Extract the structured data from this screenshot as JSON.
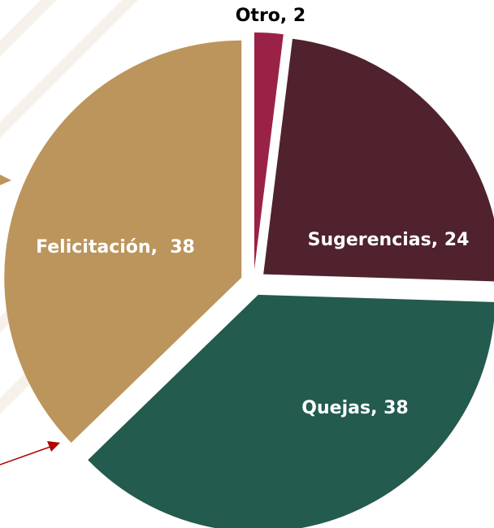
{
  "chart_data": {
    "type": "pie",
    "values": [
      2,
      24,
      38,
      38
    ],
    "value_labels": [
      "Otro, 2",
      "Sugerencias, 24",
      "Quejas, 38",
      "Felicitación,  38"
    ],
    "colors": [
      "#9b2247",
      "#4f222e",
      "#235b4e",
      "#bc955c"
    ],
    "start_angle": 0,
    "direction": "clockwise",
    "exploded": true
  }
}
